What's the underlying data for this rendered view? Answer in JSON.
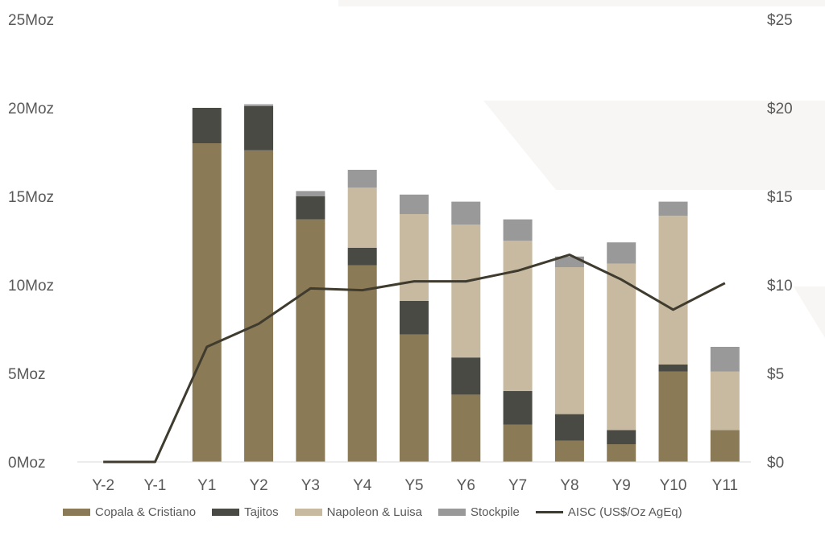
{
  "chart_data": {
    "type": "bar",
    "stacked": true,
    "categories": [
      "Y-2",
      "Y-1",
      "Y1",
      "Y2",
      "Y3",
      "Y4",
      "Y5",
      "Y6",
      "Y7",
      "Y8",
      "Y9",
      "Y10",
      "Y11"
    ],
    "series": [
      {
        "name": "Copala & Cristiano",
        "type": "bar",
        "color": "#8b7a56",
        "values": [
          0,
          0,
          18.0,
          17.6,
          13.7,
          11.1,
          7.2,
          3.8,
          2.1,
          1.2,
          1.0,
          5.1,
          1.8
        ]
      },
      {
        "name": "Tajitos",
        "type": "bar",
        "color": "#4a4a45",
        "values": [
          0,
          0,
          2.0,
          2.5,
          1.3,
          1.0,
          1.9,
          2.1,
          1.9,
          1.5,
          0.8,
          0.4,
          0
        ]
      },
      {
        "name": "Napoleon & Luisa",
        "type": "bar",
        "color": "#c7baa0",
        "values": [
          0,
          0,
          0,
          0,
          0,
          3.4,
          4.9,
          7.5,
          8.5,
          8.3,
          9.4,
          8.4,
          3.3
        ]
      },
      {
        "name": "Stockpile",
        "type": "bar",
        "color": "#999999",
        "values": [
          0,
          0,
          0,
          0.1,
          0.3,
          1.0,
          1.1,
          1.3,
          1.2,
          0.6,
          1.2,
          0.8,
          1.4
        ]
      },
      {
        "name": "AISC (US$/Oz AgEq)",
        "type": "line",
        "axis": "right",
        "color": "#3f3b2e",
        "values": [
          0,
          0,
          6.5,
          7.8,
          9.8,
          9.7,
          10.2,
          10.2,
          10.8,
          11.7,
          10.3,
          8.6,
          10.1
        ]
      }
    ],
    "y_left": {
      "min": 0,
      "max": 25,
      "ticks": [
        "0Moz",
        "5Moz",
        "10Moz",
        "15Moz",
        "20Moz",
        "25Moz"
      ]
    },
    "y_right": {
      "min": 0,
      "max": 25,
      "ticks": [
        "$0",
        "$5",
        "$10",
        "$15",
        "$20",
        "$25"
      ]
    },
    "grid": false,
    "legend_position": "bottom"
  },
  "legend": {
    "items": [
      {
        "label": "Copala & Cristiano",
        "color": "#8b7a56",
        "kind": "box"
      },
      {
        "label": "Tajitos",
        "color": "#4a4a45",
        "kind": "box"
      },
      {
        "label": "Napoleon & Luisa",
        "color": "#c7baa0",
        "kind": "box"
      },
      {
        "label": "Stockpile",
        "color": "#999999",
        "kind": "box"
      },
      {
        "label": "AISC (US$/Oz AgEq)",
        "color": "#3f3b2e",
        "kind": "line"
      }
    ]
  }
}
